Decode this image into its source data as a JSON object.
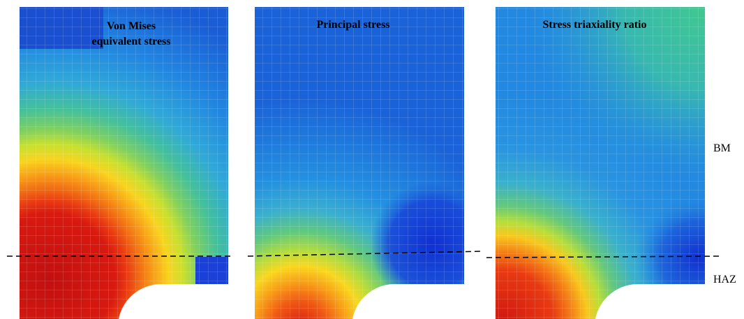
{
  "panels": [
    {
      "title_lines": [
        "Von Mises",
        "equivalent stress"
      ]
    },
    {
      "title_lines": [
        "Principal stress"
      ]
    },
    {
      "title_lines": [
        "Stress triaxiality ratio"
      ]
    }
  ],
  "zones": {
    "upper": "BM",
    "lower": "HAZ"
  }
}
